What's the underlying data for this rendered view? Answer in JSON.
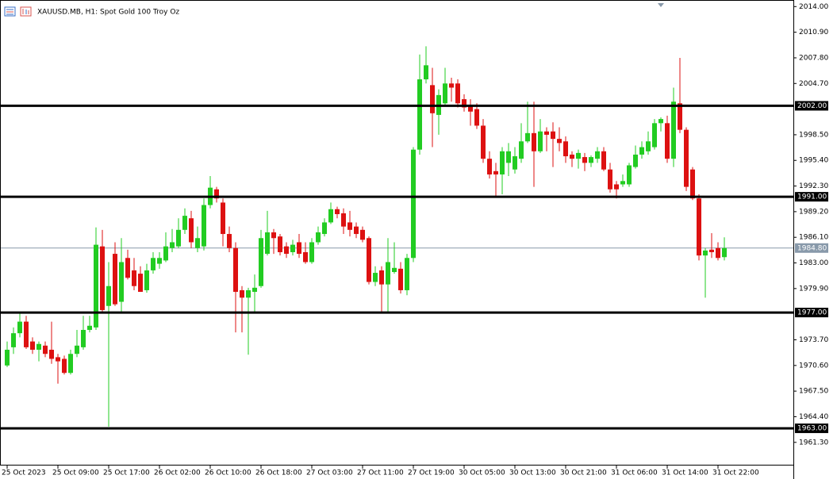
{
  "chart_data": {
    "type": "candlestick",
    "title": "XAUUSD.MB, H1:  Spot Gold 100 Troy Oz",
    "up_color": "#22cc22",
    "down_color": "#dd1111",
    "ylim": [
      1958.5,
      2014.7
    ],
    "yticks": [
      {
        "value": 2014,
        "label": "2014.00"
      },
      {
        "value": 2010.9,
        "label": "2010.90"
      },
      {
        "value": 2007.8,
        "label": "2007.80"
      },
      {
        "value": 2004.7,
        "label": "2004.70"
      },
      {
        "value": 1998.5,
        "label": "1998.50"
      },
      {
        "value": 1995.4,
        "label": "1995.40"
      },
      {
        "value": 1992.3,
        "label": "1992.30"
      },
      {
        "value": 1989.2,
        "label": "1989.20"
      },
      {
        "value": 1986.1,
        "label": "1986.10"
      },
      {
        "value": 1983,
        "label": "1983.00"
      },
      {
        "value": 1979.9,
        "label": "1979.90"
      },
      {
        "value": 1973.7,
        "label": "1973.70"
      },
      {
        "value": 1970.6,
        "label": "1970.60"
      },
      {
        "value": 1967.5,
        "label": "1967.50"
      },
      {
        "value": 1964.4,
        "label": "1964.40"
      },
      {
        "value": 1961.3,
        "label": "1961.30"
      }
    ],
    "hlines": [
      {
        "value": 2002,
        "label": "2002.00"
      },
      {
        "value": 1991,
        "label": "1991.00"
      },
      {
        "value": 1977,
        "label": "1977.00"
      },
      {
        "value": 1963,
        "label": "1963.00"
      }
    ],
    "hline_color": "#000000",
    "price_line": {
      "value": 1984.8,
      "label": "1984.80"
    },
    "price_line_color": "#8899aa",
    "categories": [
      "25 Oct 2023",
      null,
      null,
      null,
      null,
      null,
      null,
      null,
      "25 Oct 09:00",
      null,
      null,
      null,
      null,
      null,
      null,
      null,
      "25 Oct 17:00",
      null,
      null,
      null,
      null,
      null,
      null,
      null,
      "26 Oct 02:00",
      null,
      null,
      null,
      null,
      null,
      null,
      null,
      "26 Oct 10:00",
      null,
      null,
      null,
      null,
      null,
      null,
      null,
      "26 Oct 18:00",
      null,
      null,
      null,
      null,
      null,
      null,
      null,
      "27 Oct 03:00",
      null,
      null,
      null,
      null,
      null,
      null,
      null,
      "27 Oct 11:00",
      null,
      null,
      null,
      null,
      null,
      null,
      null,
      "27 Oct 19:00",
      null,
      null,
      null,
      null,
      null,
      null,
      null,
      "30 Oct 05:00",
      null,
      null,
      null,
      null,
      null,
      null,
      null,
      "30 Oct 13:00",
      null,
      null,
      null,
      null,
      null,
      null,
      null,
      "30 Oct 21:00",
      null,
      null,
      null,
      null,
      null,
      null,
      null,
      "31 Oct 06:00",
      null,
      null,
      null,
      null,
      null,
      null,
      null,
      "31 Oct 14:00",
      null,
      null,
      null,
      null,
      null,
      null,
      null,
      "31 Oct 22:00",
      null
    ],
    "open": [
      1970.6,
      1972.8,
      1974.5,
      1975.9,
      1973.5,
      1972.5,
      1973.0,
      1972.5,
      1971.6,
      1971.4,
      1969.7,
      1972.0,
      1972.8,
      1974.9,
      1975.2,
      1985.0,
      1977.8,
      1984.1,
      1978.3,
      1983.6,
      1982.1,
      1981.7,
      1979.7,
      1982.1,
      1982.9,
      1983.3,
      1984.8,
      1985.0,
      1987.0,
      1988.4,
      1984.8,
      1985.0,
      1990.0,
      1991.9,
      1990.3,
      1986.5,
      1984.8,
      1979.7,
      1978.8,
      1979.5,
      1980.2,
      1984.1,
      1986.7,
      1986.2,
      1985.0,
      1984.3,
      1985.5,
      1984.3,
      1983.1,
      1985.5,
      1986.5,
      1987.9,
      1989.5,
      1989.0,
      1987.9,
      1987.4,
      1987.0,
      1986.0,
      1980.7,
      1982.1,
      1980.4,
      1981.9,
      1982.3,
      1979.7,
      1983.6,
      1996.7,
      2005.2,
      2004.5,
      2000.9,
      2002.3,
      2004.7,
      2004.7,
      2002.8,
      2002.0,
      2001.6,
      1999.6,
      1995.6,
      1994.1,
      1993.7,
      1995.1,
      1994.3,
      1995.6,
      1997.7,
      1998.7,
      1996.5,
      1998.9,
      1998.9,
      1998.0,
      1997.7,
      1996.1,
      1995.6,
      1995.8,
      1995.1,
      1995.6,
      1996.5,
      1994.3,
      1992.5,
      1992.5,
      1992.5,
      1994.6,
      1996.1,
      1996.5,
      1997.0,
      1999.9,
      1999.9,
      1995.6,
      2002.3,
      1999.1,
      1994.3,
      1990.8,
      1983.9,
      1984.6,
      1984.8,
      1983.7
    ],
    "high": [
      1973.5,
      1975.2,
      1977.1,
      1976.6,
      1974.0,
      1973.5,
      1973.5,
      1975.9,
      1972.0,
      1971.8,
      1972.5,
      1974.9,
      1976.6,
      1976.6,
      1987.3,
      1987.0,
      1983.1,
      1985.5,
      1986.0,
      1984.6,
      1983.6,
      1982.6,
      1982.9,
      1984.3,
      1984.3,
      1986.7,
      1987.1,
      1988.4,
      1989.6,
      1989.3,
      1987.4,
      1990.8,
      1993.5,
      1992.2,
      1990.8,
      1987.4,
      1985.5,
      1980.2,
      1980.0,
      1981.6,
      1987.0,
      1989.3,
      1987.1,
      1986.5,
      1985.5,
      1985.8,
      1986.5,
      1985.5,
      1986.0,
      1987.4,
      1988.4,
      1990.3,
      1989.8,
      1989.6,
      1989.3,
      1987.9,
      1987.4,
      1986.2,
      1982.6,
      1982.6,
      1986.0,
      1985.5,
      1983.1,
      1984.1,
      1997.0,
      2008.2,
      2009.2,
      2006.6,
      2004.0,
      2006.6,
      2005.4,
      2005.2,
      2003.4,
      2002.8,
      2002.3,
      2000.4,
      1996.5,
      1995.1,
      1997.0,
      1997.5,
      1997.0,
      1999.9,
      2002.5,
      2002.5,
      2000.4,
      1999.4,
      2000.0,
      1999.4,
      1998.3,
      1996.5,
      1996.7,
      1996.3,
      1996.0,
      1997.0,
      1997.0,
      1995.1,
      1992.9,
      1993.7,
      1995.1,
      1997.2,
      1997.7,
      1998.9,
      2000.4,
      2000.6,
      2000.8,
      2004.2,
      2007.8,
      1999.4,
      1994.6,
      1991.3,
      1984.8,
      1986.6,
      1985.5,
      1986.1
    ],
    "low": [
      1970.4,
      1972.0,
      1974.0,
      1972.6,
      1972.0,
      1971.1,
      1971.6,
      1970.8,
      1968.4,
      1969.5,
      1969.5,
      1971.6,
      1972.5,
      1974.6,
      1974.9,
      1976.9,
      1963.2,
      1977.8,
      1976.9,
      1981.0,
      1979.7,
      1979.5,
      1979.4,
      1981.7,
      1982.3,
      1983.1,
      1984.3,
      1984.8,
      1986.5,
      1984.8,
      1984.3,
      1984.5,
      1989.6,
      1990.3,
      1985.0,
      1984.3,
      1974.6,
      1974.6,
      1971.9,
      1976.9,
      1980.0,
      1983.9,
      1984.1,
      1983.9,
      1983.6,
      1983.9,
      1983.6,
      1982.9,
      1982.9,
      1985.2,
      1986.2,
      1987.7,
      1988.4,
      1986.5,
      1986.2,
      1986.0,
      1985.5,
      1980.4,
      1980.2,
      1977.1,
      1976.9,
      1981.7,
      1979.3,
      1979.1,
      1983.1,
      1996.1,
      2004.7,
      1997.0,
      1998.5,
      2002.1,
      2002.5,
      2001.8,
      2001.3,
      1999.6,
      1999.2,
      1995.1,
      1993.2,
      1991.0,
      1991.3,
      1993.5,
      1993.8,
      1995.1,
      1997.5,
      1992.2,
      1996.3,
      1996.5,
      1994.6,
      1996.5,
      1995.1,
      1994.6,
      1994.4,
      1994.1,
      1994.6,
      1995.1,
      1994.1,
      1991.5,
      1990.8,
      1992.2,
      1992.2,
      1994.4,
      1995.6,
      1996.1,
      1996.7,
      1998.9,
      1995.1,
      1994.6,
      1998.7,
      1991.7,
      1990.6,
      1983.3,
      1978.8,
      1983.6,
      1983.3,
      1983.3
    ],
    "close": [
      1972.5,
      1974.5,
      1975.9,
      1972.8,
      1972.5,
      1973.2,
      1972.0,
      1971.4,
      1971.1,
      1969.7,
      1972.0,
      1973.0,
      1974.9,
      1975.4,
      1985.2,
      1977.3,
      1980.2,
      1978.0,
      1983.1,
      1981.2,
      1980.2,
      1979.5,
      1982.1,
      1983.6,
      1983.6,
      1985.0,
      1985.5,
      1987.0,
      1988.7,
      1985.5,
      1986.0,
      1990.0,
      1992.1,
      1990.8,
      1986.5,
      1984.8,
      1979.5,
      1978.8,
      1979.7,
      1980.0,
      1986.0,
      1986.7,
      1986.0,
      1984.3,
      1984.1,
      1985.2,
      1984.1,
      1983.1,
      1985.5,
      1986.7,
      1987.9,
      1989.5,
      1988.9,
      1987.4,
      1987.0,
      1986.5,
      1985.8,
      1980.7,
      1981.8,
      1980.4,
      1983.1,
      1982.4,
      1979.7,
      1983.6,
      1996.7,
      2005.2,
      2006.9,
      2001.1,
      2003.3,
      2004.7,
      2004.2,
      2002.3,
      2001.8,
      2001.3,
      1999.6,
      1995.6,
      1993.7,
      1993.7,
      1996.5,
      1996.5,
      1995.9,
      1997.7,
      1998.7,
      1996.5,
      1998.9,
      1998.5,
      1998.0,
      1997.5,
      1995.9,
      1995.6,
      1996.3,
      1995.1,
      1995.8,
      1996.5,
      1994.3,
      1991.9,
      1991.9,
      1992.9,
      1994.8,
      1996.1,
      1997.0,
      1997.7,
      1999.9,
      2000.4,
      1995.6,
      2002.5,
      1999.1,
      1992.2,
      1990.8,
      1983.9,
      1984.5,
      1984.3,
      1983.6,
      1984.8
    ]
  }
}
